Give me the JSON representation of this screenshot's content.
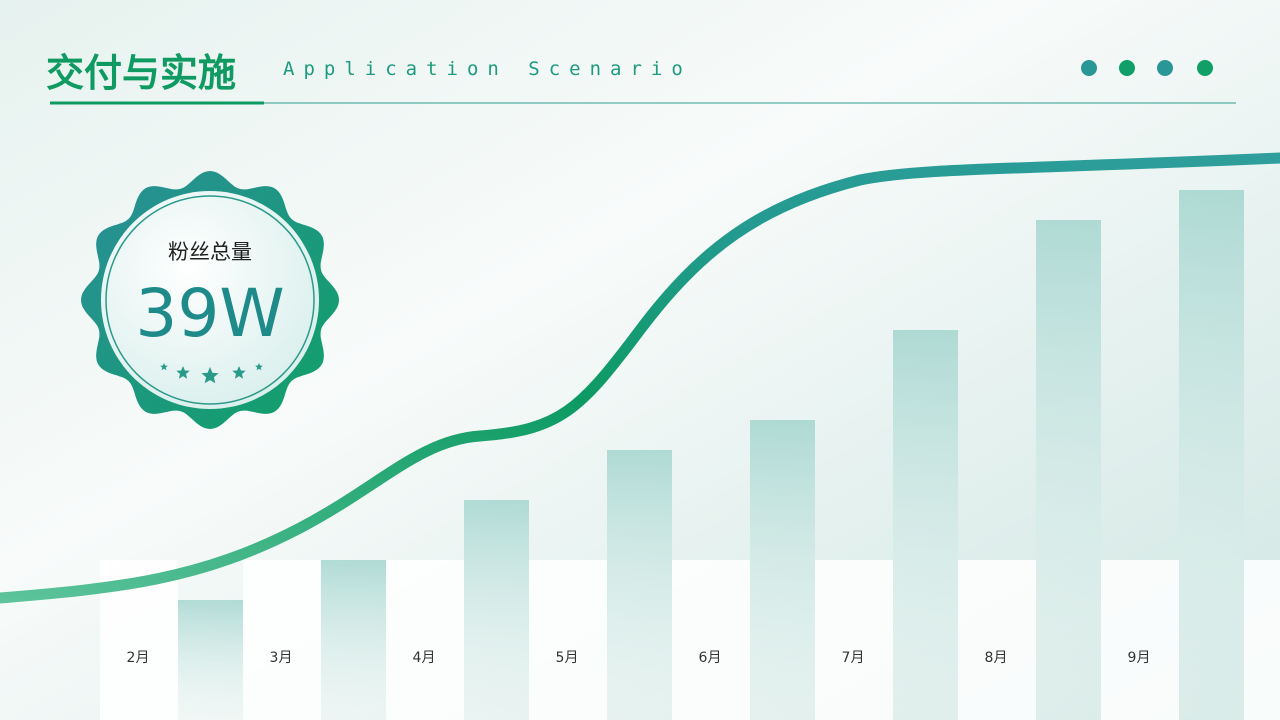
{
  "header": {
    "title": "交付与实施",
    "subtitle": "Application Scenario"
  },
  "badge": {
    "label": "粉丝总量",
    "value": "39W"
  },
  "months": [
    "2月",
    "3月",
    "4月",
    "5月",
    "6月",
    "7月",
    "8月",
    "9月"
  ]
}
